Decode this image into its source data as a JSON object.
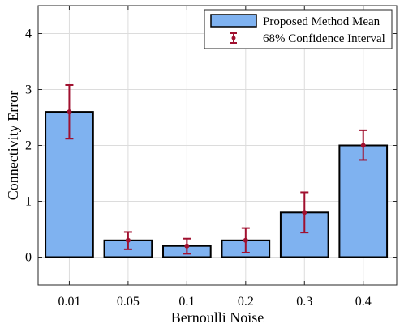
{
  "chart_data": {
    "type": "bar",
    "title": "",
    "xlabel": "Bernoulli Noise",
    "ylabel": "Connectivity Error",
    "categories": [
      "0.01",
      "0.05",
      "0.1",
      "0.2",
      "0.3",
      "0.4"
    ],
    "values": [
      2.6,
      0.3,
      0.2,
      0.3,
      0.8,
      2.0
    ],
    "error_low": [
      2.12,
      0.14,
      0.06,
      0.08,
      0.44,
      1.74
    ],
    "error_high": [
      3.08,
      0.45,
      0.33,
      0.52,
      1.16,
      2.27
    ],
    "ylim": [
      -0.5,
      4.5
    ],
    "yticks": [
      "0",
      "1",
      "2",
      "3",
      "4"
    ],
    "grid": true,
    "legend_position": "top-right",
    "series": [
      {
        "name": "Proposed Method Mean",
        "kind": "bar",
        "color": "#7fb2f0"
      },
      {
        "name": "68% Confidence Interval",
        "kind": "errorbar",
        "color": "#a0102f"
      }
    ]
  }
}
